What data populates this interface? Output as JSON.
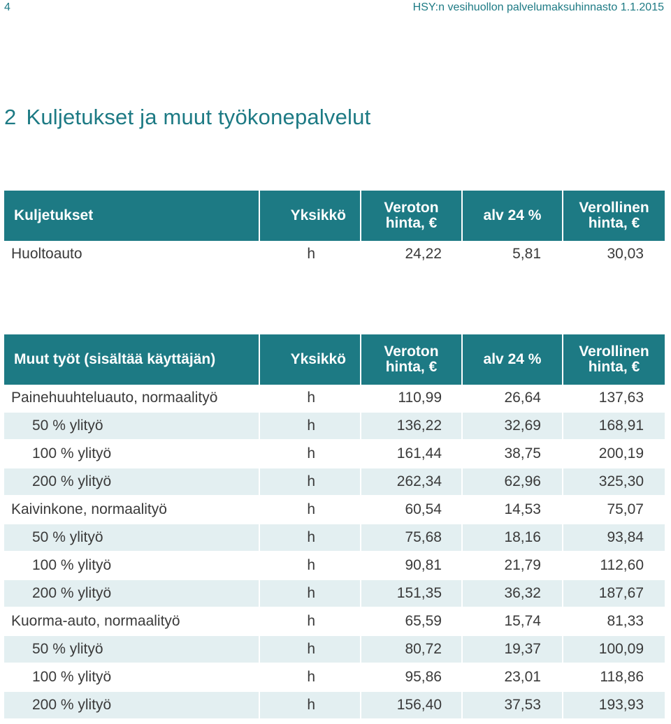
{
  "header": {
    "page_number": "4",
    "running_title": "HSY:n vesihuollon palvelumaksuhinnasto 1.1.2015"
  },
  "section": {
    "number": "2",
    "title": "Kuljetukset ja muut työkonepalvelut"
  },
  "colors": {
    "accent": "#1d7a84",
    "row_alt": "#e3eff1",
    "text": "#3a3a3a"
  },
  "transport_table": {
    "headers": [
      "Kuljetukset",
      "Yksikkö",
      "Veroton hinta, €",
      "alv 24 %",
      "Verollinen hinta, €"
    ],
    "rows": [
      {
        "name": "Huoltoauto",
        "unit": "h",
        "price_ex": "24,22",
        "vat": "5,81",
        "price_inc": "30,03"
      }
    ]
  },
  "other_table": {
    "headers": [
      "Muut työt (sisältää käyttäjän)",
      "Yksikkö",
      "Veroton hinta, €",
      "alv 24 %",
      "Verollinen hinta, €"
    ],
    "rows": [
      {
        "name": "Painehuuhteluauto, normaalityö",
        "unit": "h",
        "price_ex": "110,99",
        "vat": "26,64",
        "price_inc": "137,63"
      },
      {
        "name": "50 % ylityö",
        "unit": "h",
        "price_ex": "136,22",
        "vat": "32,69",
        "price_inc": "168,91"
      },
      {
        "name": "100 % ylityö",
        "unit": "h",
        "price_ex": "161,44",
        "vat": "38,75",
        "price_inc": "200,19"
      },
      {
        "name": "200 % ylityö",
        "unit": "h",
        "price_ex": "262,34",
        "vat": "62,96",
        "price_inc": "325,30"
      },
      {
        "name": "Kaivinkone, normaalityö",
        "unit": "h",
        "price_ex": "60,54",
        "vat": "14,53",
        "price_inc": "75,07"
      },
      {
        "name": "50 % ylityö",
        "unit": "h",
        "price_ex": "75,68",
        "vat": "18,16",
        "price_inc": "93,84"
      },
      {
        "name": "100 % ylityö",
        "unit": "h",
        "price_ex": "90,81",
        "vat": "21,79",
        "price_inc": "112,60"
      },
      {
        "name": "200 % ylityö",
        "unit": "h",
        "price_ex": "151,35",
        "vat": "36,32",
        "price_inc": "187,67"
      },
      {
        "name": "Kuorma-auto, normaalityö",
        "unit": "h",
        "price_ex": "65,59",
        "vat": "15,74",
        "price_inc": "81,33"
      },
      {
        "name": "50 % ylityö",
        "unit": "h",
        "price_ex": "80,72",
        "vat": "19,37",
        "price_inc": "100,09"
      },
      {
        "name": "100 % ylityö",
        "unit": "h",
        "price_ex": "95,86",
        "vat": "23,01",
        "price_inc": "118,86"
      },
      {
        "name": "200 % ylityö",
        "unit": "h",
        "price_ex": "156,40",
        "vat": "37,53",
        "price_inc": "193,93"
      }
    ]
  }
}
